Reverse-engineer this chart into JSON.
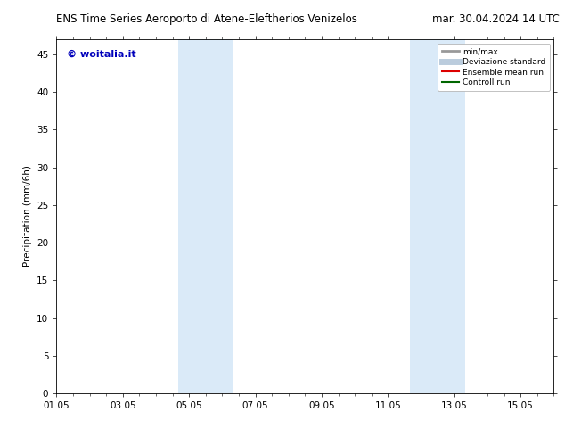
{
  "title_left": "ENS Time Series Aeroporto di Atene-Eleftherios Venizelos",
  "title_right": "mar. 30.04.2024 14 UTC",
  "ylabel": "Precipitation (mm/6h)",
  "ylim": [
    0,
    47
  ],
  "yticks": [
    0,
    5,
    10,
    15,
    20,
    25,
    30,
    35,
    40,
    45
  ],
  "xtick_labels": [
    "01.05",
    "03.05",
    "05.05",
    "07.05",
    "09.05",
    "11.05",
    "13.05",
    "15.05"
  ],
  "xtick_positions": [
    0,
    2,
    4,
    6,
    8,
    10,
    12,
    14
  ],
  "xlim": [
    0,
    15
  ],
  "shaded_bands": [
    {
      "xmin": 3.67,
      "xmax": 5.33
    },
    {
      "xmin": 10.67,
      "xmax": 12.33
    }
  ],
  "shade_color": "#daeaf8",
  "watermark_text": "© woitalia.it",
  "watermark_color": "#0000bb",
  "legend_entries": [
    {
      "label": "min/max",
      "color": "#999999",
      "lw": 2.0
    },
    {
      "label": "Deviazione standard",
      "color": "#bbccdd",
      "lw": 5
    },
    {
      "label": "Ensemble mean run",
      "color": "#dd0000",
      "lw": 1.5
    },
    {
      "label": "Controll run",
      "color": "#006600",
      "lw": 1.5
    }
  ],
  "bg_color": "#ffffff",
  "title_fontsize": 8.5,
  "tick_fontsize": 7.5,
  "ylabel_fontsize": 7.5
}
